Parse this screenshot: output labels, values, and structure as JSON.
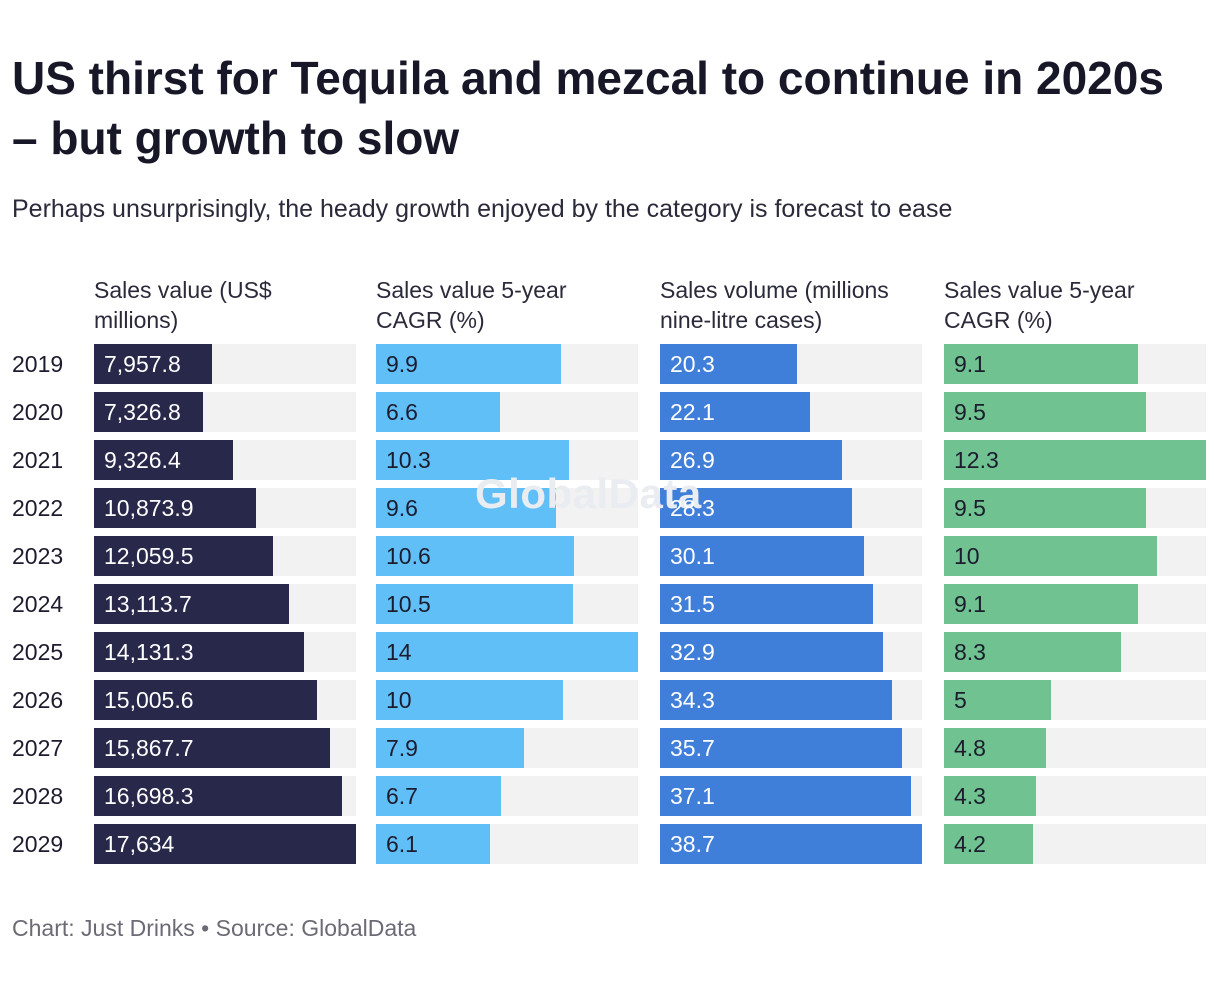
{
  "header": {
    "title": "US thirst for Tequila and mezcal to continue in 2020s – but growth to slow",
    "subtitle": "Perhaps unsurprisingly, the heady growth enjoyed by the category is forecast to ease"
  },
  "watermark": "GlobalData",
  "footer": {
    "credit": "Chart: Just Drinks • Source: GlobalData"
  },
  "colors": {
    "track": "#f2f2f2",
    "series_1": "#27284a",
    "series_2": "#60bff7",
    "series_3": "#3f7fd9",
    "series_4": "#70c290"
  },
  "chart_data": {
    "type": "bar",
    "orientation": "horizontal",
    "layout": "small-multiples",
    "title": "US thirst for Tequila and mezcal to continue in 2020s – but growth to slow",
    "subtitle": "Perhaps unsurprisingly, the heady growth enjoyed by the category is forecast to ease",
    "categories": [
      "2019",
      "2020",
      "2021",
      "2022",
      "2023",
      "2024",
      "2025",
      "2026",
      "2027",
      "2028",
      "2029"
    ],
    "series": [
      {
        "name": "Sales value (US$ millions)",
        "values": [
          7957.8,
          7326.8,
          9326.4,
          10873.9,
          12059.5,
          13113.7,
          14131.3,
          15005.6,
          15867.7,
          16698.3,
          17634
        ],
        "labels": [
          "7,957.8",
          "7,326.8",
          "9,326.4",
          "10,873.9",
          "12,059.5",
          "13,113.7",
          "14,131.3",
          "15,005.6",
          "15,867.7",
          "16,698.3",
          "17,634"
        ],
        "axis_max": 17634,
        "color": "#27284a",
        "label_color": "#ffffff"
      },
      {
        "name": "Sales value 5-year CAGR (%)",
        "values": [
          9.9,
          6.6,
          10.3,
          9.6,
          10.6,
          10.5,
          14,
          10,
          7.9,
          6.7,
          6.1
        ],
        "labels": [
          "9.9",
          "6.6",
          "10.3",
          "9.6",
          "10.6",
          "10.5",
          "14",
          "10",
          "7.9",
          "6.7",
          "6.1"
        ],
        "axis_max": 14,
        "color": "#60bff7",
        "label_color": "#1c1c2e"
      },
      {
        "name": "Sales volume (millions nine-litre cases)",
        "values": [
          20.3,
          22.1,
          26.9,
          28.3,
          30.1,
          31.5,
          32.9,
          34.3,
          35.7,
          37.1,
          38.7
        ],
        "labels": [
          "20.3",
          "22.1",
          "26.9",
          "28.3",
          "30.1",
          "31.5",
          "32.9",
          "34.3",
          "35.7",
          "37.1",
          "38.7"
        ],
        "axis_max": 38.7,
        "color": "#3f7fd9",
        "label_color": "#ffffff"
      },
      {
        "name": "Sales value 5-year CAGR (%)",
        "values": [
          9.1,
          9.5,
          12.3,
          9.5,
          10,
          9.1,
          8.3,
          5,
          4.8,
          4.3,
          4.2
        ],
        "labels": [
          "9.1",
          "9.5",
          "12.3",
          "9.5",
          "10",
          "9.1",
          "8.3",
          "5",
          "4.8",
          "4.3",
          "4.2"
        ],
        "axis_max": 12.3,
        "color": "#70c290",
        "label_color": "#1c1c2e"
      }
    ],
    "grid": false,
    "legend": "none"
  }
}
